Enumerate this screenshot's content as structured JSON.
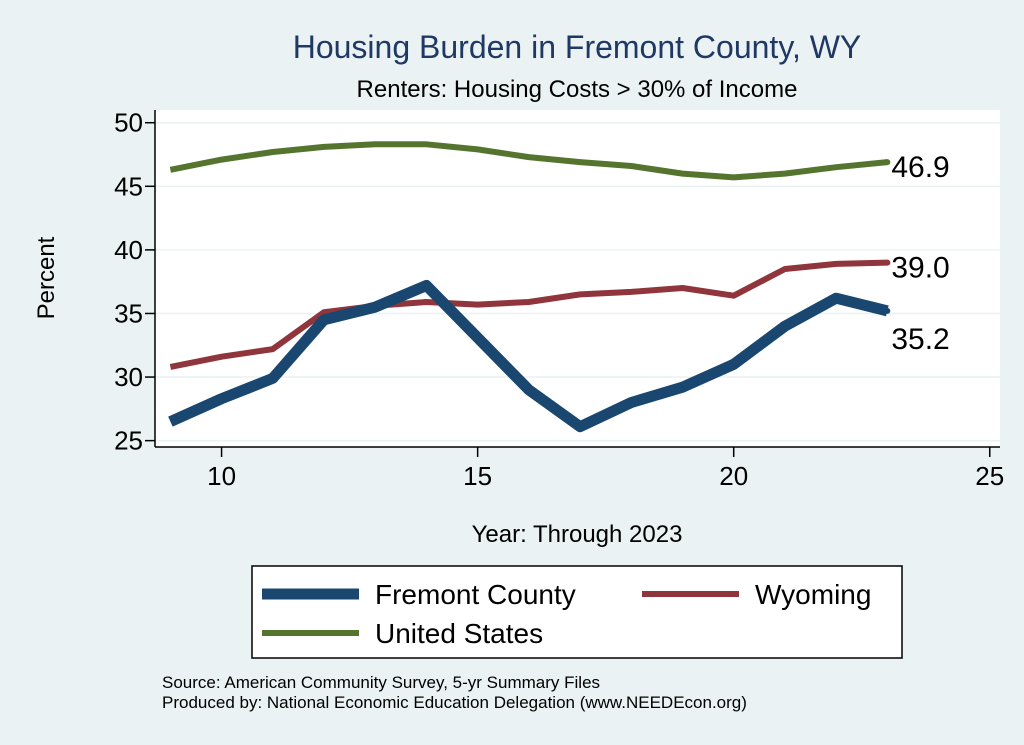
{
  "chart_data": {
    "type": "line",
    "title": "Housing Burden in Fremont County, WY",
    "subtitle": "Renters: Housing Costs > 30% of Income",
    "xlabel": "Year: Through 2023",
    "ylabel": "Percent",
    "xlim": [
      8.7,
      25.2
    ],
    "ylim": [
      24.5,
      51
    ],
    "xticks": [
      10,
      15,
      20,
      25
    ],
    "yticks": [
      25,
      30,
      35,
      40,
      45,
      50
    ],
    "grid": "horizontal",
    "legend_position": "bottom",
    "series": [
      {
        "name": "Fremont County",
        "color": "#1a476f",
        "x": [
          9,
          10,
          11,
          12,
          13,
          14,
          15,
          16,
          17,
          18,
          19,
          20,
          21,
          22,
          23
        ],
        "y": [
          26.5,
          28.3,
          29.9,
          34.5,
          35.5,
          37.2,
          33.1,
          29.0,
          26.1,
          28.0,
          29.2,
          31.0,
          34.0,
          36.2,
          35.2
        ],
        "end_label": "35.2"
      },
      {
        "name": "Wyoming",
        "color": "#90353b",
        "x": [
          9,
          10,
          11,
          12,
          13,
          14,
          15,
          16,
          17,
          18,
          19,
          20,
          21,
          22,
          23
        ],
        "y": [
          30.8,
          31.6,
          32.2,
          35.1,
          35.6,
          35.9,
          35.7,
          35.9,
          36.5,
          36.7,
          37.0,
          36.4,
          38.5,
          38.9,
          39.0
        ],
        "end_label": "39.0"
      },
      {
        "name": "United States",
        "color": "#55752f",
        "x": [
          9,
          10,
          11,
          12,
          13,
          14,
          15,
          16,
          17,
          18,
          19,
          20,
          21,
          22,
          23
        ],
        "y": [
          46.3,
          47.1,
          47.7,
          48.1,
          48.3,
          48.3,
          47.9,
          47.3,
          46.9,
          46.6,
          46.0,
          45.7,
          46.0,
          46.5,
          46.9
        ],
        "end_label": "46.9"
      }
    ],
    "source_lines": [
      "Source: American Community Survey, 5-yr Summary Files",
      "Produced by: National Economic Education Delegation (www.NEEDEcon.org)"
    ]
  }
}
